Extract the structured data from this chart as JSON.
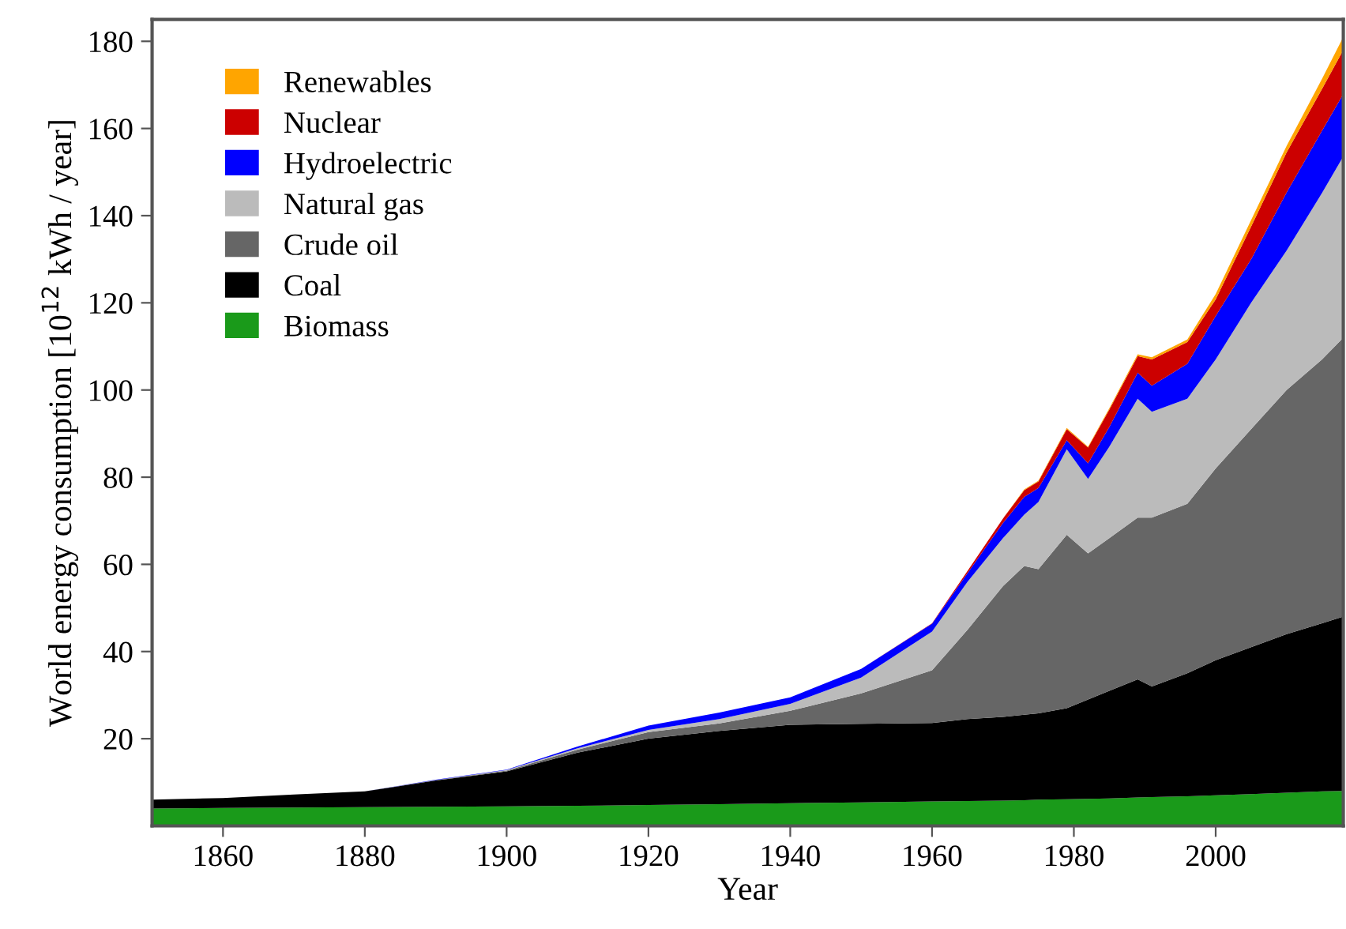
{
  "chart_data": {
    "type": "area",
    "stacked": true,
    "xlabel": "Year",
    "ylabel": "World energy consumption [10$^{12}$ kWh / year]",
    "x": [
      1850,
      1860,
      1870,
      1880,
      1890,
      1900,
      1910,
      1920,
      1930,
      1940,
      1950,
      1960,
      1965,
      1970,
      1973,
      1975,
      1979,
      1982,
      1985,
      1989,
      1991,
      1996,
      2000,
      2005,
      2010,
      2015,
      2018
    ],
    "series": [
      {
        "name": "Biomass",
        "color": "#1a9a1a",
        "values": [
          4,
          4.1,
          4.2,
          4.3,
          4.4,
          4.5,
          4.6,
          4.8,
          5.0,
          5.2,
          5.4,
          5.6,
          5.7,
          5.8,
          5.9,
          6.0,
          6.1,
          6.2,
          6.3,
          6.5,
          6.6,
          6.8,
          7.0,
          7.3,
          7.6,
          7.9,
          8
        ]
      },
      {
        "name": "Coal",
        "color": "#000000",
        "values": [
          2,
          2.3,
          3.0,
          3.6,
          6.0,
          8.0,
          12.2,
          15.2,
          16.8,
          18.0,
          18.0,
          18.0,
          18.8,
          19.2,
          19.6,
          19.8,
          20.9,
          22.8,
          24.7,
          27.1,
          25.4,
          28.2,
          31,
          33.7,
          36.4,
          38.6,
          40
        ]
      },
      {
        "name": "Crude oil",
        "color": "#666666",
        "values": [
          0,
          0,
          0,
          0,
          0.1,
          0.2,
          0.7,
          1.5,
          1.7,
          3.2,
          7.0,
          12.1,
          20.5,
          30,
          34.1,
          33.1,
          39.8,
          33.5,
          35,
          37.1,
          38.7,
          38.9,
          44,
          50,
          56,
          60.5,
          64
        ]
      },
      {
        "name": "Natural gas",
        "color": "#bbbbbb",
        "values": [
          0,
          0,
          0,
          0,
          0,
          0.1,
          0.3,
          0.5,
          1.0,
          1.6,
          3.6,
          8.9,
          11,
          11,
          11.8,
          15.4,
          19.6,
          17.1,
          21,
          27.3,
          24.3,
          24.1,
          25,
          29,
          32,
          38.2,
          41.6
        ]
      },
      {
        "name": "Hydroelectric",
        "color": "#0000ff",
        "values": [
          0,
          0,
          0,
          0,
          0.1,
          0.1,
          0.4,
          1.0,
          1.5,
          1.5,
          2.0,
          1.8,
          2.0,
          3.5,
          4.1,
          3.2,
          2.1,
          3.6,
          4.5,
          6.0,
          6.0,
          8.0,
          10,
          10,
          13.3,
          14.3,
          14.3
        ]
      },
      {
        "name": "Nuclear",
        "color": "#cc0000",
        "values": [
          0,
          0,
          0,
          0,
          0,
          0,
          0,
          0,
          0,
          0,
          0,
          0.1,
          0.5,
          1.0,
          1.5,
          1.5,
          2.5,
          3.6,
          4.0,
          3.8,
          6.0,
          5.0,
          3.8,
          7.5,
          9.2,
          9.6,
          10.1
        ]
      },
      {
        "name": "Renewables",
        "color": "#ffa500",
        "values": [
          0,
          0,
          0,
          0,
          0,
          0,
          0,
          0,
          0,
          0,
          0,
          0,
          0,
          0,
          0.2,
          0.2,
          0.3,
          0.2,
          0.3,
          0.4,
          0.5,
          0.6,
          1.2,
          1.5,
          1.5,
          2.3,
          3
        ]
      }
    ],
    "xlim": [
      1850,
      2018
    ],
    "xticks": [
      1860,
      1880,
      1900,
      1920,
      1940,
      1960,
      1980,
      2000
    ],
    "ylim": [
      0,
      185
    ],
    "yticks": [
      20,
      40,
      60,
      80,
      100,
      120,
      140,
      160,
      180
    ],
    "legend": "top left",
    "grid": false
  }
}
